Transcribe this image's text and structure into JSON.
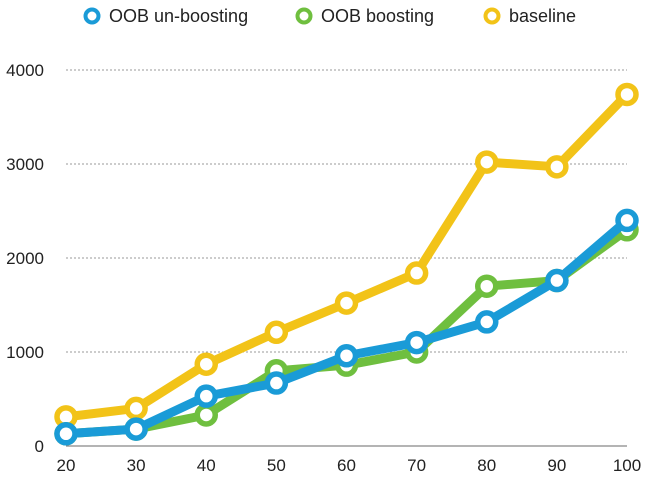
{
  "chart_data": {
    "type": "line",
    "title": "",
    "xlabel": "",
    "ylabel": "",
    "x": [
      20,
      30,
      40,
      50,
      60,
      70,
      80,
      90,
      100
    ],
    "xlim": [
      20,
      100
    ],
    "ylim": [
      0,
      4000
    ],
    "yticks": [
      0,
      1000,
      2000,
      3000,
      4000
    ],
    "xtick_labels": [
      "20",
      "30",
      "40",
      "50",
      "60",
      "70",
      "80",
      "90",
      "100"
    ],
    "ytick_labels": [
      "0",
      "1000",
      "2000",
      "3000",
      "4000"
    ],
    "grid": "horizontal dotted",
    "legend_position": "top",
    "series": [
      {
        "name": "OOB un-boosting",
        "color": "#1a9bd7",
        "values": [
          130,
          180,
          530,
          670,
          960,
          1100,
          1320,
          1760,
          2400
        ]
      },
      {
        "name": "OOB boosting",
        "color": "#6fbf3f",
        "values": [
          130,
          180,
          330,
          800,
          860,
          1000,
          1700,
          1760,
          2300
        ]
      },
      {
        "name": "baseline",
        "color": "#f2c318",
        "values": [
          310,
          400,
          870,
          1210,
          1520,
          1840,
          3020,
          2970,
          3740
        ]
      }
    ]
  }
}
